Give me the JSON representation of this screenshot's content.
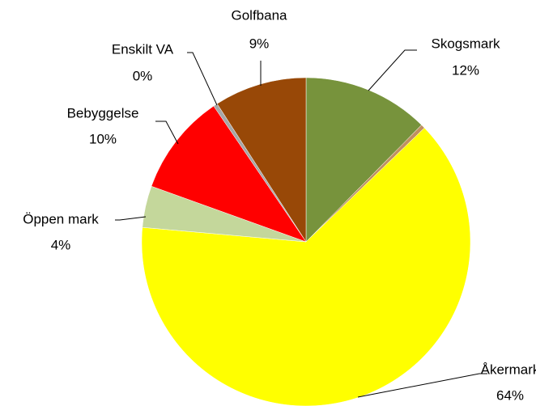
{
  "chart_data": {
    "type": "pie",
    "categories": [
      "Skogsmark",
      null,
      "Åkermark",
      "Öppen mark",
      "Bebyggelse",
      "Enskilt VA",
      "Golfbana"
    ],
    "values": [
      12.4,
      0.4,
      63.6,
      4.1,
      10.0,
      0.4,
      9.1
    ],
    "value_labels": [
      "12%",
      null,
      "64%",
      "4%",
      "10%",
      "0%",
      "9%"
    ],
    "colors": [
      "#77933c",
      "#c09060",
      "#ffff00",
      "#c4d79b",
      "#ff0000",
      "#a6a6a6",
      "#984807"
    ]
  }
}
